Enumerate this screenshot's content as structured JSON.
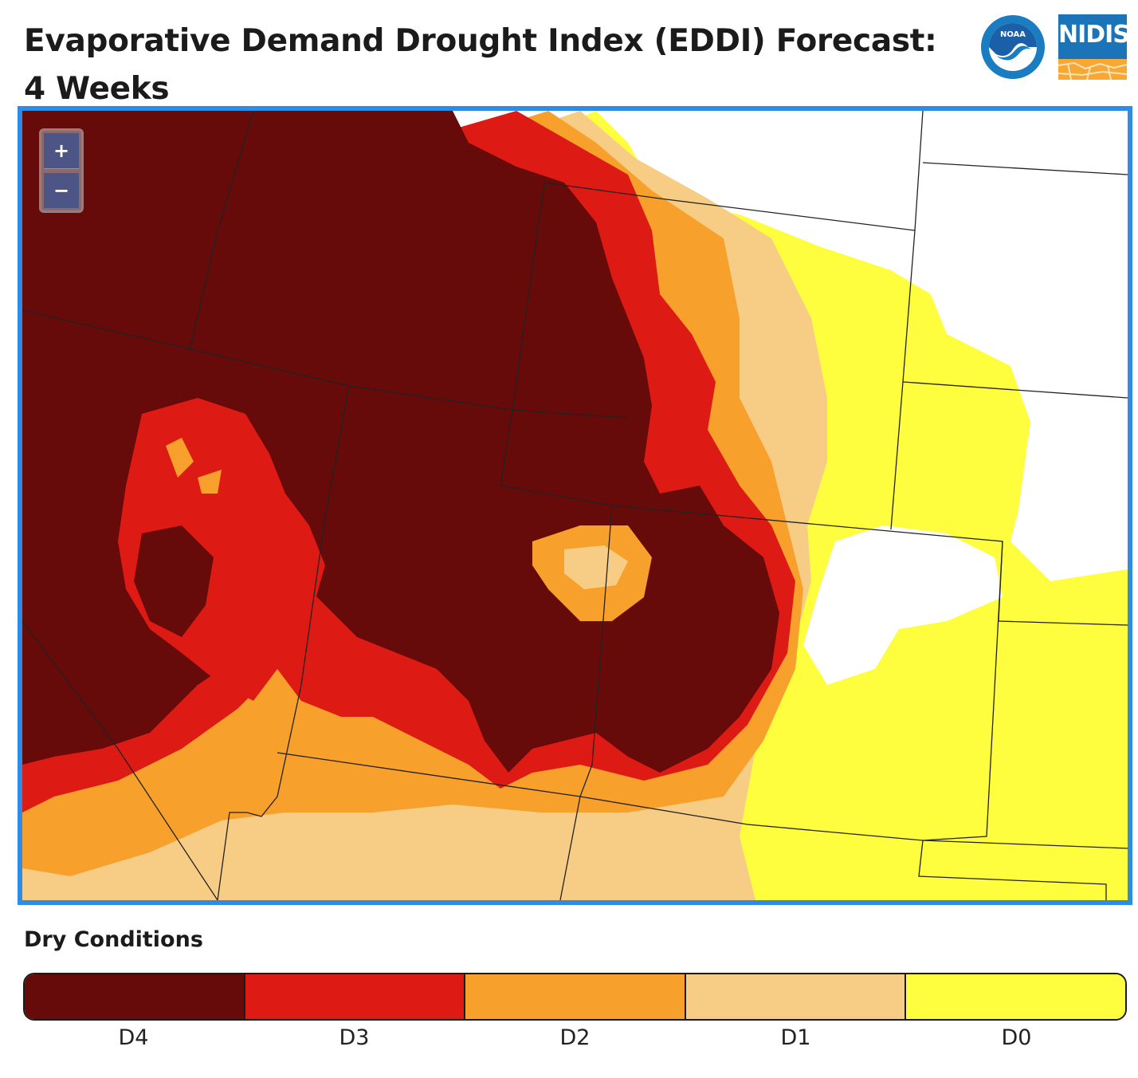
{
  "header": {
    "title": "Evaporative Demand Drought Index (EDDI) Forecast: 4 Weeks",
    "logos": {
      "noaa_text": "NOAA",
      "nidis_text": "NIDIS"
    }
  },
  "map": {
    "zoom_in_label": "+",
    "zoom_out_label": "−",
    "colors": {
      "D4": "#660a0a",
      "D3": "#dd1a13",
      "D2": "#f7a02c",
      "D1": "#f7cd85",
      "D0": "#fefe3e",
      "none": "#ffffff",
      "frame": "#2e8be6",
      "borders": "#222222"
    }
  },
  "legend": {
    "title": "Dry Conditions",
    "classes": [
      {
        "label": "D4",
        "color": "#660a0a"
      },
      {
        "label": "D3",
        "color": "#dd1a13"
      },
      {
        "label": "D2",
        "color": "#f7a02c"
      },
      {
        "label": "D1",
        "color": "#f7cd85"
      },
      {
        "label": "D0",
        "color": "#fefe3e"
      }
    ]
  }
}
